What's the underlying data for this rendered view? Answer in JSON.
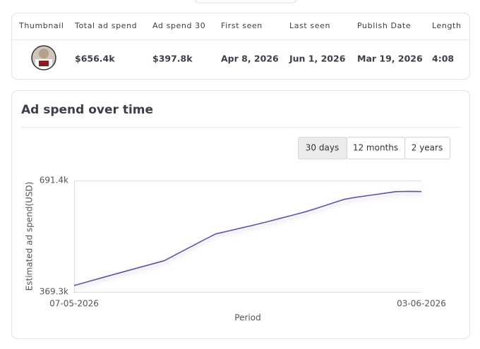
{
  "table": {
    "headers": [
      "Thumbnail",
      "Total ad spend",
      "Ad spend 30",
      "First seen",
      "Last seen",
      "Publish Date",
      "Length"
    ],
    "rows": [
      [
        "$656.4k",
        "$397.8k",
        "Apr 8, 2026",
        "Jun 1, 2026",
        "Mar 19, 2026",
        "4:08"
      ]
    ]
  },
  "chart_data": {
    "type": "line",
    "title": "Ad spend over time",
    "range_options": [
      "30 days",
      "12 months",
      "2 years"
    ],
    "selected_range": "30 days",
    "y_label": "Estimated ad spend(USD)",
    "x_label": "Period",
    "categories": [
      "07-05-2026",
      null,
      null,
      null,
      null,
      null,
      null,
      null,
      null,
      null,
      null,
      null,
      null,
      null,
      null,
      null,
      null,
      null,
      null,
      null,
      null,
      null,
      null,
      null,
      null,
      null,
      null,
      "03-06-2026"
    ],
    "values": [
      387.7,
      398.1,
      408.5,
      418.9,
      429.1,
      439.2,
      449.2,
      459.5,
      479.0,
      498.3,
      517.7,
      536.8,
      545.4,
      554.1,
      562.7,
      572.0,
      581.7,
      591.3,
      601.0,
      612.8,
      624.9,
      637.0,
      643.2,
      648.5,
      653.8,
      659.1,
      660.0,
      659.4
    ],
    "color": "#5b54a6",
    "ylim": [
      369.3,
      691.4
    ],
    "yticks": [
      {
        "value": 369.3,
        "label": "369.3k"
      },
      {
        "value": 691.4,
        "label": "691.4k"
      }
    ]
  }
}
